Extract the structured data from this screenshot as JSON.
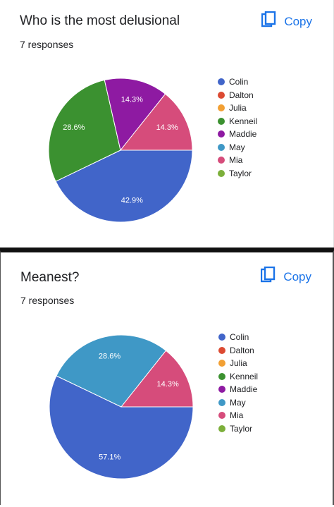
{
  "copy_label": "Copy",
  "chart_data": [
    {
      "type": "pie",
      "title": "Who is the most delusional",
      "subtitle": "7 responses",
      "legend_position": "right",
      "legend": [
        "Colin",
        "Dalton",
        "Julia",
        "Kenneil",
        "Maddie",
        "May",
        "Mia",
        "Taylor"
      ],
      "colors": [
        "#4165c9",
        "#dc4a32",
        "#f2a034",
        "#3b9130",
        "#8e1aa2",
        "#3f98c6",
        "#d64c7b",
        "#7caf3a"
      ],
      "slices": [
        {
          "name": "Colin",
          "value": 42.9,
          "label": "42.9%",
          "color": "#4165c9"
        },
        {
          "name": "Kenneil",
          "value": 28.6,
          "label": "28.6%",
          "color": "#3b9130"
        },
        {
          "name": "Maddie",
          "value": 14.3,
          "label": "14.3%",
          "color": "#8e1aa2"
        },
        {
          "name": "Mia",
          "value": 14.3,
          "label": "14.3%",
          "color": "#d64c7b"
        }
      ]
    },
    {
      "type": "pie",
      "title": "Meanest?",
      "subtitle": "7 responses",
      "legend_position": "right",
      "legend": [
        "Colin",
        "Dalton",
        "Julia",
        "Kenneil",
        "Maddie",
        "May",
        "Mia",
        "Taylor"
      ],
      "colors": [
        "#4165c9",
        "#dc4a32",
        "#f2a034",
        "#3b9130",
        "#8e1aa2",
        "#3f98c6",
        "#d64c7b",
        "#7caf3a"
      ],
      "slices": [
        {
          "name": "Colin",
          "value": 57.1,
          "label": "57.1%",
          "color": "#4165c9"
        },
        {
          "name": "May",
          "value": 28.6,
          "label": "28.6%",
          "color": "#3f98c6"
        },
        {
          "name": "Mia",
          "value": 14.3,
          "label": "14.3%",
          "color": "#d64c7b"
        }
      ]
    }
  ]
}
